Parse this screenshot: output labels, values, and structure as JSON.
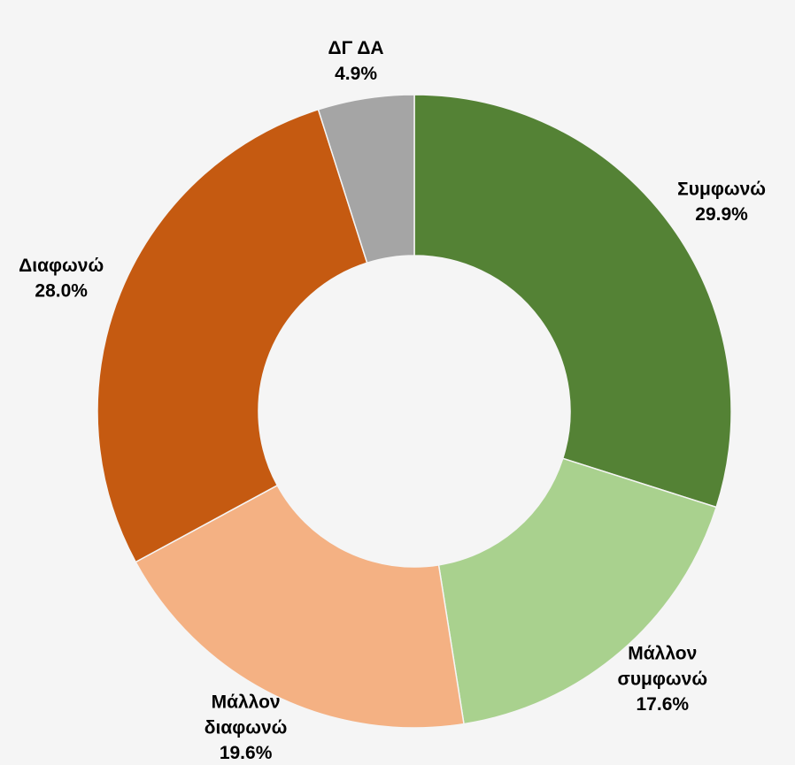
{
  "chart_data": {
    "type": "donut",
    "categories": [
      "Συμφωνώ",
      "Μάλλον συμφωνώ",
      "Μάλλον διαφωνώ",
      "Διαφωνώ",
      "ΔΓ ΔΑ"
    ],
    "values": [
      29.9,
      17.6,
      19.6,
      28.0,
      4.9
    ],
    "value_labels": [
      "29.9%",
      "17.6%",
      "19.6%",
      "28.0%",
      "4.9%"
    ],
    "colors": [
      "#548235",
      "#a9d18e",
      "#f4b183",
      "#c55a11",
      "#a5a5a5"
    ]
  }
}
